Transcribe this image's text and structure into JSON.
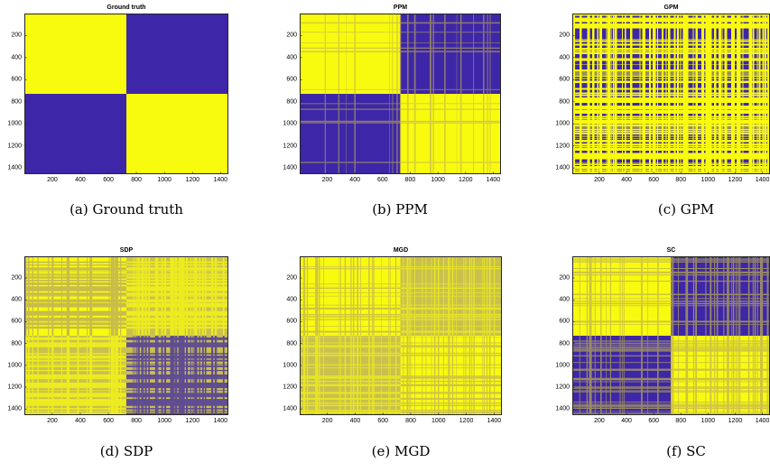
{
  "colors": {
    "yellow": "#f9fb0e",
    "blue": "#3e26a8",
    "line": "#c9c050"
  },
  "chart_data": [
    {
      "type": "heatmap",
      "title": "Ground truth",
      "caption": "(a) Ground truth",
      "xlim": [
        1,
        1456
      ],
      "ylim": [
        1,
        1456
      ],
      "xticks": [
        200,
        400,
        600,
        800,
        1000,
        1200,
        1400
      ],
      "yticks": [
        200,
        400,
        600,
        800,
        1000,
        1200,
        1400
      ],
      "pattern": "two-block",
      "split": 728,
      "values": [
        [
          1,
          0
        ],
        [
          0,
          1
        ]
      ],
      "noise": "none"
    },
    {
      "type": "heatmap",
      "title": "PPM",
      "caption": "(b) PPM",
      "xlim": [
        1,
        1456
      ],
      "ylim": [
        1,
        1456
      ],
      "xticks": [
        200,
        400,
        600,
        800,
        1000,
        1200,
        1400
      ],
      "yticks": [
        200,
        400,
        600,
        800,
        1000,
        1200,
        1400
      ],
      "pattern": "two-block",
      "split": 728,
      "values": [
        [
          1,
          0
        ],
        [
          0,
          1
        ]
      ],
      "noise": "light"
    },
    {
      "type": "heatmap",
      "title": "GPM",
      "caption": "(c) GPM",
      "xlim": [
        1,
        1456
      ],
      "ylim": [
        1,
        1456
      ],
      "xticks": [
        200,
        400,
        600,
        800,
        1000,
        1200,
        1400
      ],
      "yticks": [
        200,
        400,
        600,
        800,
        1000,
        1200,
        1400
      ],
      "pattern": "uniform",
      "split": 728,
      "values": [
        [
          0.5,
          0.5
        ],
        [
          0.5,
          0.5
        ]
      ],
      "noise": "dense"
    },
    {
      "type": "heatmap",
      "title": "SDP",
      "caption": "(d) SDP",
      "xlim": [
        1,
        1456
      ],
      "ylim": [
        1,
        1456
      ],
      "xticks": [
        200,
        400,
        600,
        800,
        1000,
        1200,
        1400
      ],
      "yticks": [
        200,
        400,
        600,
        800,
        1000,
        1200,
        1400
      ],
      "pattern": "two-block",
      "split": 728,
      "values": [
        [
          1,
          0.5
        ],
        [
          0.5,
          0.5
        ]
      ],
      "noise": "striped"
    },
    {
      "type": "heatmap",
      "title": "MGD",
      "caption": "(e) MGD",
      "xlim": [
        1,
        1456
      ],
      "ylim": [
        1,
        1456
      ],
      "xticks": [
        200,
        400,
        600,
        800,
        1000,
        1200,
        1400
      ],
      "yticks": [
        200,
        400,
        600,
        800,
        1000,
        1200,
        1400
      ],
      "pattern": "two-block",
      "split": 728,
      "values": [
        [
          1,
          0.3
        ],
        [
          0.3,
          1
        ]
      ],
      "noise": "medium"
    },
    {
      "type": "heatmap",
      "title": "SC",
      "caption": "(f) SC",
      "xlim": [
        1,
        1456
      ],
      "ylim": [
        1,
        1456
      ],
      "xticks": [
        200,
        400,
        600,
        800,
        1000,
        1200,
        1400
      ],
      "yticks": [
        200,
        400,
        600,
        800,
        1000,
        1200,
        1400
      ],
      "pattern": "two-block",
      "split": 728,
      "values": [
        [
          1,
          0
        ],
        [
          0,
          1
        ]
      ],
      "noise": "medium"
    }
  ]
}
